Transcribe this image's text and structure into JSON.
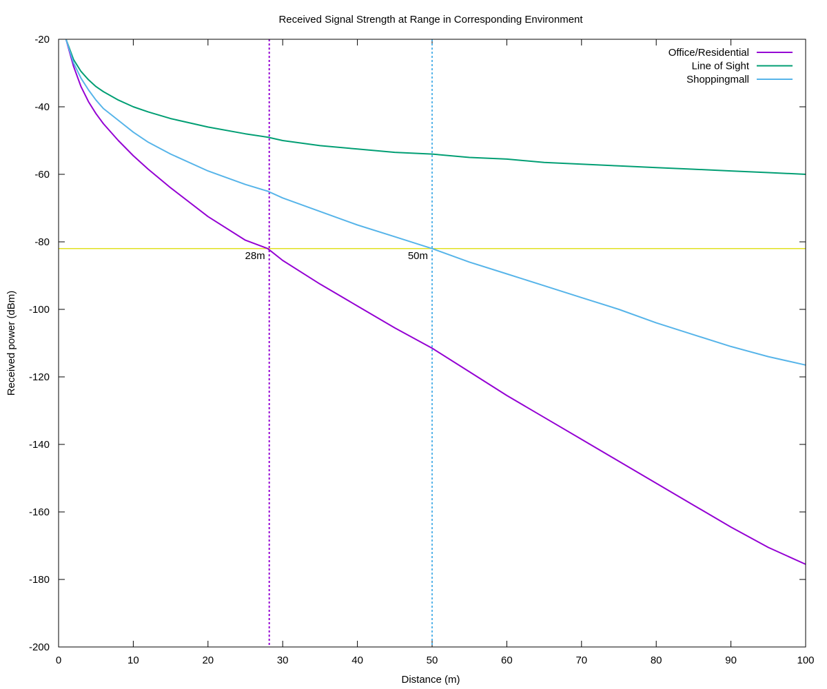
{
  "chart_data": {
    "type": "line",
    "title": "Received Signal Strength at Range in Corresponding Environment",
    "xlabel": "Distance (m)",
    "ylabel": "Received power (dBm)",
    "xlim": [
      0,
      100
    ],
    "ylim": [
      -200,
      -20
    ],
    "xticks": [
      0,
      10,
      20,
      30,
      40,
      50,
      60,
      70,
      80,
      90,
      100
    ],
    "yticks": [
      -20,
      -40,
      -60,
      -80,
      -100,
      -120,
      -140,
      -160,
      -180,
      -200
    ],
    "grid": false,
    "legend": "top-right",
    "x": [
      1,
      2,
      3,
      4,
      5,
      6,
      8,
      10,
      12,
      15,
      20,
      25,
      28,
      30,
      35,
      40,
      45,
      50,
      55,
      60,
      65,
      70,
      75,
      80,
      85,
      90,
      95,
      100
    ],
    "series": [
      {
        "name": "Office/Residential",
        "color": "#9400d3",
        "values": [
          -20,
          -28,
          -34,
          -38.5,
          -42,
          -45,
          -50,
          -54.5,
          -58.5,
          -64,
          -72.5,
          -79.5,
          -82,
          -85.5,
          -92.5,
          -99,
          -105.5,
          -111.5,
          -118.5,
          -125.5,
          -132,
          -138.5,
          -145,
          -151.5,
          -158,
          -164.5,
          -170.5,
          -175.5
        ]
      },
      {
        "name": "Line of Sight",
        "color": "#009e73",
        "values": [
          -20,
          -26,
          -29.5,
          -32,
          -34,
          -35.5,
          -38,
          -40,
          -41.5,
          -43.5,
          -46,
          -48,
          -49,
          -50,
          -51.5,
          -52.5,
          -53.5,
          -54,
          -55,
          -55.5,
          -56.5,
          -57,
          -57.5,
          -58,
          -58.5,
          -59,
          -59.5,
          -60
        ]
      },
      {
        "name": "Shoppingmall",
        "color": "#56b4e9",
        "values": [
          -20,
          -27,
          -31.5,
          -35,
          -38,
          -40.5,
          -44,
          -47.5,
          -50.5,
          -54,
          -59,
          -63,
          -65,
          -67,
          -71,
          -75,
          -78.5,
          -82,
          -86,
          -89.5,
          -93,
          -96.5,
          -100,
          -104,
          -107.5,
          -111,
          -114,
          -116.5
        ]
      }
    ],
    "threshold": {
      "y": -82,
      "color": "#e0e020"
    },
    "markers": [
      {
        "x": 28.2,
        "label": "28m",
        "color": "#9400d3"
      },
      {
        "x": 50,
        "label": "50m",
        "color": "#56b4e9"
      }
    ]
  }
}
